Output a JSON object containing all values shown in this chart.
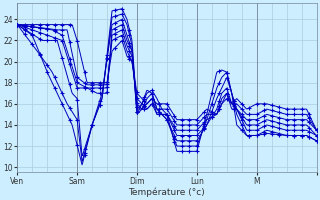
{
  "xlabel": "Température (°c)",
  "background_color": "#cceeff",
  "grid_color": "#aaccdd",
  "line_color": "#0000bb",
  "marker_color": "#0000cc",
  "xlim": [
    0,
    120
  ],
  "ylim": [
    9.5,
    25.5
  ],
  "yticks": [
    10,
    12,
    14,
    16,
    18,
    20,
    22,
    24
  ],
  "xtick_positions": [
    0,
    24,
    48,
    72,
    96,
    120
  ],
  "xtick_labels": [
    "Ven",
    "Sam",
    "Dim",
    "Lun",
    "M",
    ""
  ],
  "num_hours": 120,
  "series_waypoints": [
    [
      [
        0,
        23.5
      ],
      [
        6,
        22.5
      ],
      [
        12,
        19
      ],
      [
        18,
        16
      ],
      [
        22,
        14
      ],
      [
        26,
        10.2
      ],
      [
        30,
        14
      ],
      [
        34,
        16.5
      ],
      [
        38,
        24.8
      ],
      [
        42,
        25.0
      ],
      [
        44,
        24
      ],
      [
        46,
        22
      ],
      [
        48,
        15.5
      ],
      [
        50,
        16
      ],
      [
        52,
        17
      ],
      [
        54,
        17.3
      ],
      [
        56,
        16.5
      ],
      [
        58,
        15.5
      ],
      [
        60,
        15
      ],
      [
        64,
        11.5
      ],
      [
        68,
        11.5
      ],
      [
        70,
        11.5
      ],
      [
        72,
        11.5
      ],
      [
        76,
        15
      ],
      [
        80,
        19
      ],
      [
        82,
        19.2
      ],
      [
        84,
        19
      ],
      [
        86,
        17
      ],
      [
        88,
        14
      ],
      [
        92,
        13
      ],
      [
        96,
        13
      ],
      [
        100,
        13.2
      ],
      [
        108,
        13
      ],
      [
        116,
        13
      ],
      [
        120,
        12.5
      ]
    ],
    [
      [
        0,
        23.5
      ],
      [
        8,
        21
      ],
      [
        14,
        19
      ],
      [
        20,
        16
      ],
      [
        24,
        14.5
      ],
      [
        26,
        10.5
      ],
      [
        30,
        14
      ],
      [
        34,
        16.5
      ],
      [
        38,
        24.2
      ],
      [
        42,
        24.5
      ],
      [
        44,
        23.5
      ],
      [
        46,
        21.5
      ],
      [
        48,
        15
      ],
      [
        50,
        16
      ],
      [
        52,
        17.3
      ],
      [
        54,
        17
      ],
      [
        56,
        15.5
      ],
      [
        58,
        15
      ],
      [
        60,
        14.5
      ],
      [
        64,
        12
      ],
      [
        68,
        12
      ],
      [
        70,
        12
      ],
      [
        72,
        12
      ],
      [
        76,
        14.5
      ],
      [
        80,
        17.5
      ],
      [
        82,
        18.5
      ],
      [
        84,
        19
      ],
      [
        86,
        17
      ],
      [
        88,
        15
      ],
      [
        92,
        13
      ],
      [
        96,
        13
      ],
      [
        100,
        13.5
      ],
      [
        108,
        13
      ],
      [
        116,
        13
      ],
      [
        120,
        12.5
      ]
    ],
    [
      [
        0,
        23.5
      ],
      [
        10,
        22
      ],
      [
        16,
        22
      ],
      [
        22,
        17
      ],
      [
        24,
        16.5
      ],
      [
        26,
        11
      ],
      [
        30,
        14
      ],
      [
        34,
        17
      ],
      [
        38,
        23.5
      ],
      [
        42,
        24
      ],
      [
        44,
        22.5
      ],
      [
        46,
        21
      ],
      [
        48,
        15
      ],
      [
        50,
        15.5
      ],
      [
        52,
        16.5
      ],
      [
        54,
        17
      ],
      [
        56,
        15.5
      ],
      [
        58,
        15
      ],
      [
        60,
        14.5
      ],
      [
        64,
        12.5
      ],
      [
        68,
        12.5
      ],
      [
        70,
        12.5
      ],
      [
        72,
        12.5
      ],
      [
        76,
        14
      ],
      [
        80,
        16.5
      ],
      [
        82,
        17.5
      ],
      [
        84,
        18.5
      ],
      [
        86,
        17
      ],
      [
        88,
        15.5
      ],
      [
        92,
        13.5
      ],
      [
        96,
        13.5
      ],
      [
        100,
        14
      ],
      [
        108,
        13.5
      ],
      [
        116,
        13.5
      ],
      [
        120,
        13
      ]
    ],
    [
      [
        0,
        23.5
      ],
      [
        12,
        22.5
      ],
      [
        18,
        22
      ],
      [
        24,
        17.5
      ],
      [
        28,
        17.5
      ],
      [
        32,
        17
      ],
      [
        36,
        17
      ],
      [
        38,
        23
      ],
      [
        42,
        23.5
      ],
      [
        44,
        22
      ],
      [
        46,
        21
      ],
      [
        48,
        15.5
      ],
      [
        50,
        15.5
      ],
      [
        52,
        16
      ],
      [
        54,
        16.5
      ],
      [
        56,
        15
      ],
      [
        58,
        15
      ],
      [
        60,
        15
      ],
      [
        64,
        13
      ],
      [
        68,
        13
      ],
      [
        70,
        13
      ],
      [
        72,
        13
      ],
      [
        76,
        14
      ],
      [
        80,
        15.5
      ],
      [
        82,
        17
      ],
      [
        84,
        17.5
      ],
      [
        86,
        16
      ],
      [
        88,
        15.5
      ],
      [
        92,
        14
      ],
      [
        96,
        14
      ],
      [
        100,
        14.5
      ],
      [
        108,
        14
      ],
      [
        116,
        14
      ],
      [
        120,
        13
      ]
    ],
    [
      [
        0,
        23.5
      ],
      [
        14,
        23
      ],
      [
        18,
        22.5
      ],
      [
        24,
        18
      ],
      [
        28,
        17.5
      ],
      [
        32,
        17.5
      ],
      [
        36,
        17.5
      ],
      [
        38,
        22.5
      ],
      [
        42,
        23
      ],
      [
        44,
        21.5
      ],
      [
        46,
        20.5
      ],
      [
        48,
        16
      ],
      [
        50,
        15.5
      ],
      [
        52,
        15.5
      ],
      [
        54,
        16
      ],
      [
        56,
        15
      ],
      [
        58,
        15
      ],
      [
        60,
        15
      ],
      [
        64,
        13.5
      ],
      [
        68,
        13.5
      ],
      [
        70,
        13.5
      ],
      [
        72,
        13.5
      ],
      [
        76,
        14.5
      ],
      [
        80,
        15
      ],
      [
        82,
        16.5
      ],
      [
        84,
        17
      ],
      [
        86,
        15.5
      ],
      [
        88,
        15.5
      ],
      [
        92,
        14.5
      ],
      [
        96,
        14.5
      ],
      [
        100,
        15
      ],
      [
        108,
        14.5
      ],
      [
        116,
        14.5
      ],
      [
        120,
        13.5
      ]
    ],
    [
      [
        0,
        23.5
      ],
      [
        16,
        23
      ],
      [
        20,
        23
      ],
      [
        24,
        18.5
      ],
      [
        28,
        17.8
      ],
      [
        32,
        17.8
      ],
      [
        36,
        17.8
      ],
      [
        38,
        22
      ],
      [
        42,
        22.5
      ],
      [
        44,
        21
      ],
      [
        46,
        20
      ],
      [
        48,
        16.5
      ],
      [
        50,
        16
      ],
      [
        52,
        15.5
      ],
      [
        54,
        16
      ],
      [
        56,
        15.5
      ],
      [
        58,
        15.5
      ],
      [
        60,
        15.5
      ],
      [
        64,
        14
      ],
      [
        68,
        14
      ],
      [
        70,
        14
      ],
      [
        72,
        14
      ],
      [
        76,
        15
      ],
      [
        80,
        15
      ],
      [
        82,
        16
      ],
      [
        84,
        17
      ],
      [
        86,
        16
      ],
      [
        88,
        16
      ],
      [
        92,
        15
      ],
      [
        96,
        15
      ],
      [
        100,
        15.5
      ],
      [
        108,
        15
      ],
      [
        116,
        15
      ],
      [
        120,
        13.5
      ]
    ],
    [
      [
        0,
        23.5
      ],
      [
        18,
        23.5
      ],
      [
        22,
        23.5
      ],
      [
        24,
        22
      ],
      [
        28,
        18
      ],
      [
        32,
        18
      ],
      [
        36,
        18
      ],
      [
        38,
        21
      ],
      [
        42,
        22
      ],
      [
        44,
        20.5
      ],
      [
        46,
        20
      ],
      [
        48,
        17
      ],
      [
        50,
        16.5
      ],
      [
        52,
        16
      ],
      [
        54,
        16.5
      ],
      [
        56,
        16
      ],
      [
        58,
        16
      ],
      [
        60,
        16
      ],
      [
        64,
        14.5
      ],
      [
        68,
        14.5
      ],
      [
        70,
        14.5
      ],
      [
        72,
        14.5
      ],
      [
        76,
        15.5
      ],
      [
        80,
        15
      ],
      [
        82,
        16
      ],
      [
        84,
        16.5
      ],
      [
        86,
        16
      ],
      [
        88,
        16.5
      ],
      [
        92,
        15.5
      ],
      [
        96,
        16
      ],
      [
        100,
        16
      ],
      [
        108,
        15.5
      ],
      [
        116,
        15.5
      ],
      [
        120,
        13.5
      ]
    ]
  ]
}
